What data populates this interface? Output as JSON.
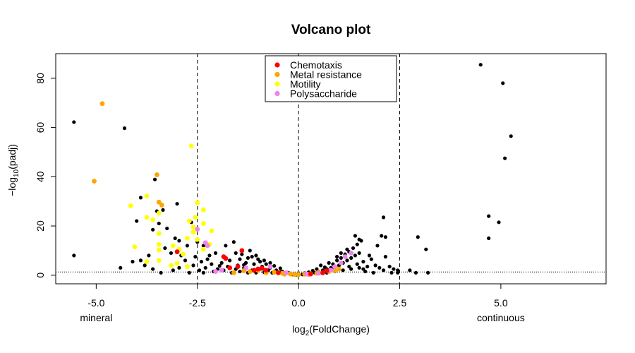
{
  "chart_data": {
    "type": "scatter",
    "title": "Volcano plot",
    "xlabel": "log2(FoldChange)",
    "xlabel_base": "log",
    "xlabel_sub": "2",
    "xlabel_rest": "(FoldChange)",
    "ylabel_prefix": "−log",
    "ylabel_sub": "10",
    "ylabel_rest": "(padj)",
    "xlim": [
      -6.0,
      7.6
    ],
    "ylim": [
      -3.5,
      90.0
    ],
    "x_ticks": [
      -5.0,
      -2.5,
      0.0,
      2.5,
      5.0
    ],
    "x_tick_labels": [
      "-5.0",
      "-2.5",
      "0.0",
      "2.5",
      "5.0"
    ],
    "y_ticks": [
      0,
      20,
      40,
      60,
      80
    ],
    "y_tick_labels": [
      "0",
      "20",
      "40",
      "60",
      "80"
    ],
    "x_end_labels": [
      {
        "text": "mineral",
        "x": -5.0
      },
      {
        "text": "continuous",
        "x": 5.0
      }
    ],
    "vlines": [
      -2.5,
      0.0,
      2.5
    ],
    "hline": 1.3,
    "legend": {
      "placement": "top-center",
      "entries": [
        {
          "name": "Chemotaxis",
          "color": "#ff0000"
        },
        {
          "name": "Metal resistance",
          "color": "#ffa500"
        },
        {
          "name": "Motility",
          "color": "#ffff00"
        },
        {
          "name": "Polysaccharide",
          "color": "#ee82ee"
        }
      ]
    },
    "series": [
      {
        "name": "Other",
        "color": "#000000",
        "points": [
          [
            -5.55,
            62.2
          ],
          [
            -5.55,
            8.0
          ],
          [
            -4.3,
            59.7
          ],
          [
            -3.55,
            38.9
          ],
          [
            -3.0,
            29.0
          ],
          [
            -3.9,
            31.5
          ],
          [
            -4.0,
            22.0
          ],
          [
            -3.5,
            26.0
          ],
          [
            -3.35,
            26.5
          ],
          [
            -3.25,
            19.0
          ],
          [
            -3.6,
            18.5
          ],
          [
            -3.05,
            15.0
          ],
          [
            -2.95,
            14.0
          ],
          [
            -3.3,
            11.0
          ],
          [
            -3.7,
            8.0
          ],
          [
            -3.9,
            6.0
          ],
          [
            -3.8,
            4.0
          ],
          [
            -4.1,
            5.5
          ],
          [
            -4.4,
            3.0
          ],
          [
            -3.45,
            21.0
          ],
          [
            -2.65,
            21.5
          ],
          [
            -2.5,
            13.5
          ],
          [
            -2.35,
            12.0
          ],
          [
            -2.2,
            8.0
          ],
          [
            -2.05,
            9.0
          ],
          [
            -1.8,
            12.0
          ],
          [
            -1.6,
            13.5
          ],
          [
            -1.4,
            8.5
          ],
          [
            -1.2,
            10.0
          ],
          [
            -1.0,
            6.5
          ],
          [
            -1.9,
            5.0
          ],
          [
            -2.4,
            5.5
          ],
          [
            -2.8,
            6.0
          ],
          [
            -2.6,
            4.0
          ],
          [
            -2.3,
            3.0
          ],
          [
            -2.1,
            1.5
          ],
          [
            -2.7,
            1.0
          ],
          [
            -3.1,
            2.0
          ],
          [
            -3.4,
            1.0
          ],
          [
            -3.6,
            2.5
          ],
          [
            -2.9,
            8.0
          ],
          [
            -2.75,
            12.0
          ],
          [
            -3.15,
            9.0
          ],
          [
            -2.45,
            2.0
          ],
          [
            -2.0,
            2.5
          ],
          [
            -1.75,
            3.5
          ],
          [
            -1.5,
            4.0
          ],
          [
            -1.3,
            5.0
          ],
          [
            -1.1,
            4.5
          ],
          [
            -0.9,
            3.5
          ],
          [
            -0.7,
            3.0
          ],
          [
            -0.55,
            2.0
          ],
          [
            -0.4,
            1.5
          ],
          [
            -0.25,
            1.0
          ],
          [
            -0.1,
            0.5
          ],
          [
            -1.65,
            1.0
          ],
          [
            -1.55,
            2.5
          ],
          [
            -1.45,
            1.5
          ],
          [
            -1.35,
            3.0
          ],
          [
            -1.25,
            1.0
          ],
          [
            -1.15,
            2.0
          ],
          [
            -1.05,
            1.0
          ],
          [
            -0.95,
            2.5
          ],
          [
            -0.85,
            1.2
          ],
          [
            -0.75,
            2.0
          ],
          [
            -0.65,
            1.0
          ],
          [
            -0.6,
            1.5
          ],
          [
            -0.5,
            0.8
          ],
          [
            -0.45,
            1.2
          ],
          [
            -0.35,
            0.6
          ],
          [
            -0.3,
            0.9
          ],
          [
            -0.2,
            0.4
          ],
          [
            -0.15,
            0.3
          ],
          [
            -0.05,
            0.2
          ],
          [
            0.0,
            0.1
          ],
          [
            -1.7,
            6.0
          ],
          [
            -1.45,
            6.5
          ],
          [
            -1.25,
            7.0
          ],
          [
            -0.95,
            5.5
          ],
          [
            -0.8,
            4.5
          ],
          [
            -0.6,
            3.8
          ],
          [
            -0.45,
            2.8
          ],
          [
            -1.85,
            2.0
          ],
          [
            -1.95,
            3.8
          ],
          [
            -2.15,
            4.5
          ],
          [
            -2.55,
            7.5
          ],
          [
            -2.25,
            6.5
          ],
          [
            -1.55,
            9.0
          ],
          [
            -1.15,
            7.5
          ],
          [
            -1.05,
            8.0
          ],
          [
            -1.35,
            4.2
          ],
          [
            -0.85,
            6.0
          ],
          [
            -0.7,
            5.0
          ],
          [
            -2.35,
            1.0
          ],
          [
            -2.95,
            3.0
          ],
          [
            0.1,
            0.3
          ],
          [
            0.2,
            0.5
          ],
          [
            0.3,
            0.8
          ],
          [
            0.4,
            1.0
          ],
          [
            0.5,
            1.5
          ],
          [
            0.6,
            2.0
          ],
          [
            0.7,
            2.5
          ],
          [
            0.8,
            3.0
          ],
          [
            0.9,
            3.5
          ],
          [
            1.0,
            4.0
          ],
          [
            1.1,
            5.0
          ],
          [
            1.2,
            6.0
          ],
          [
            1.3,
            7.0
          ],
          [
            1.4,
            8.0
          ],
          [
            1.5,
            9.0
          ],
          [
            0.55,
            4.0
          ],
          [
            0.65,
            3.2
          ],
          [
            0.75,
            5.0
          ],
          [
            0.85,
            4.5
          ],
          [
            0.95,
            6.0
          ],
          [
            1.05,
            7.0
          ],
          [
            1.15,
            8.5
          ],
          [
            1.25,
            9.5
          ],
          [
            1.35,
            11.0
          ],
          [
            1.45,
            12.5
          ],
          [
            1.55,
            14.0
          ],
          [
            1.4,
            16.0
          ],
          [
            1.5,
            14.5
          ],
          [
            1.05,
            9.0
          ],
          [
            1.2,
            10.5
          ],
          [
            0.95,
            7.5
          ],
          [
            0.45,
            2.5
          ],
          [
            0.35,
            1.8
          ],
          [
            0.25,
            1.2
          ],
          [
            0.15,
            0.8
          ],
          [
            0.7,
            1.0
          ],
          [
            0.9,
            1.5
          ],
          [
            1.1,
            2.0
          ],
          [
            1.3,
            2.5
          ],
          [
            1.5,
            3.0
          ],
          [
            1.7,
            3.5
          ],
          [
            1.9,
            4.0
          ],
          [
            1.6,
            5.5
          ],
          [
            1.8,
            6.5
          ],
          [
            2.0,
            3.0
          ],
          [
            2.1,
            2.0
          ],
          [
            2.3,
            1.0
          ],
          [
            2.35,
            2.5
          ],
          [
            1.65,
            1.5
          ],
          [
            1.85,
            1.0
          ],
          [
            1.75,
            8.0
          ],
          [
            1.95,
            12.0
          ],
          [
            2.05,
            16.0
          ],
          [
            2.1,
            23.5
          ],
          [
            2.15,
            15.5
          ],
          [
            2.15,
            7.5
          ],
          [
            2.25,
            3.5
          ],
          [
            2.45,
            1.0
          ],
          [
            2.45,
            2.0
          ],
          [
            2.75,
            2.0
          ],
          [
            2.9,
            1.0
          ],
          [
            3.2,
            1.0
          ],
          [
            2.95,
            15.5
          ],
          [
            3.15,
            10.5
          ],
          [
            4.5,
            85.5
          ],
          [
            5.05,
            78.0
          ],
          [
            5.25,
            56.5
          ],
          [
            5.1,
            47.5
          ],
          [
            4.7,
            24.0
          ],
          [
            4.95,
            21.5
          ],
          [
            4.7,
            15.0
          ],
          [
            1.25,
            3.5
          ],
          [
            0.85,
            2.0
          ],
          [
            1.45,
            4.5
          ],
          [
            1.6,
            2.5
          ]
        ]
      },
      {
        "name": "Metal resistance",
        "color": "#ffa500",
        "points": [
          [
            -4.85,
            69.7
          ],
          [
            -5.05,
            38.2
          ],
          [
            -3.5,
            40.8
          ],
          [
            -3.45,
            29.7
          ],
          [
            -3.38,
            28.5
          ],
          [
            -1.6,
            1.0
          ],
          [
            -1.2,
            1.5
          ],
          [
            -1.0,
            2.0
          ],
          [
            -0.8,
            1.0
          ],
          [
            -0.6,
            1.2
          ],
          [
            -0.4,
            0.8
          ],
          [
            -0.2,
            0.5
          ],
          [
            -0.1,
            0.3
          ],
          [
            0.0,
            0.2
          ],
          [
            0.15,
            0.4
          ],
          [
            0.3,
            0.6
          ],
          [
            0.45,
            0.8
          ],
          [
            0.6,
            1.0
          ],
          [
            0.75,
            1.5
          ],
          [
            0.9,
            1.8
          ],
          [
            1.0,
            2.5
          ],
          [
            0.5,
            1.2
          ],
          [
            -0.35,
            0.4
          ],
          [
            0.25,
            0.3
          ],
          [
            -1.35,
            1.8
          ]
        ]
      },
      {
        "name": "Motility",
        "color": "#ffff00",
        "points": [
          [
            -2.65,
            52.5
          ],
          [
            -4.15,
            28.2
          ],
          [
            -3.75,
            32.2
          ],
          [
            -3.75,
            23.5
          ],
          [
            -3.6,
            22.5
          ],
          [
            -3.45,
            25.2
          ],
          [
            -3.45,
            17.0
          ],
          [
            -3.45,
            12.5
          ],
          [
            -3.45,
            10.2
          ],
          [
            -4.05,
            11.5
          ],
          [
            -3.75,
            5.5
          ],
          [
            -3.45,
            6.0
          ],
          [
            -3.1,
            12.0
          ],
          [
            -2.95,
            10.5
          ],
          [
            -2.85,
            8.5
          ],
          [
            -2.7,
            22.0
          ],
          [
            -2.6,
            17.5
          ],
          [
            -2.55,
            23.5
          ],
          [
            -2.5,
            29.5
          ],
          [
            -2.35,
            26.5
          ],
          [
            -2.35,
            21.0
          ],
          [
            -2.5,
            14.5
          ],
          [
            -2.35,
            10.5
          ],
          [
            -2.2,
            12.5
          ],
          [
            -2.15,
            18.0
          ],
          [
            -2.75,
            15.0
          ],
          [
            -3.0,
            4.8
          ],
          [
            -3.15,
            4.0
          ],
          [
            -2.75,
            3.5
          ],
          [
            -2.6,
            19.5
          ]
        ]
      },
      {
        "name": "Polysaccharide",
        "color": "#ee82ee",
        "points": [
          [
            -2.5,
            18.7
          ],
          [
            -2.3,
            13.2
          ],
          [
            -2.25,
            12.0
          ],
          [
            -2.05,
            1.5
          ],
          [
            -1.9,
            2.0
          ],
          [
            -1.3,
            3.0
          ],
          [
            -0.7,
            3.5
          ],
          [
            -0.3,
            1.0
          ],
          [
            0.2,
            0.5
          ],
          [
            0.5,
            0.8
          ],
          [
            0.8,
            2.0
          ],
          [
            0.9,
            3.5
          ],
          [
            1.05,
            5.0
          ],
          [
            1.15,
            7.5
          ],
          [
            1.3,
            9.0
          ]
        ]
      },
      {
        "name": "Chemotaxis",
        "color": "#ff0000",
        "points": [
          [
            -3.0,
            9.5
          ],
          [
            -1.85,
            7.5
          ],
          [
            -1.8,
            6.8
          ],
          [
            -1.4,
            10.0
          ],
          [
            -1.7,
            3.0
          ],
          [
            -1.5,
            3.5
          ],
          [
            -1.1,
            2.0
          ],
          [
            -1.0,
            2.5
          ],
          [
            -0.9,
            2.8
          ],
          [
            -0.8,
            2.0
          ],
          [
            -0.5,
            1.0
          ],
          [
            0.3,
            0.5
          ],
          [
            0.6,
            1.0
          ],
          [
            0.7,
            1.8
          ]
        ]
      }
    ]
  }
}
